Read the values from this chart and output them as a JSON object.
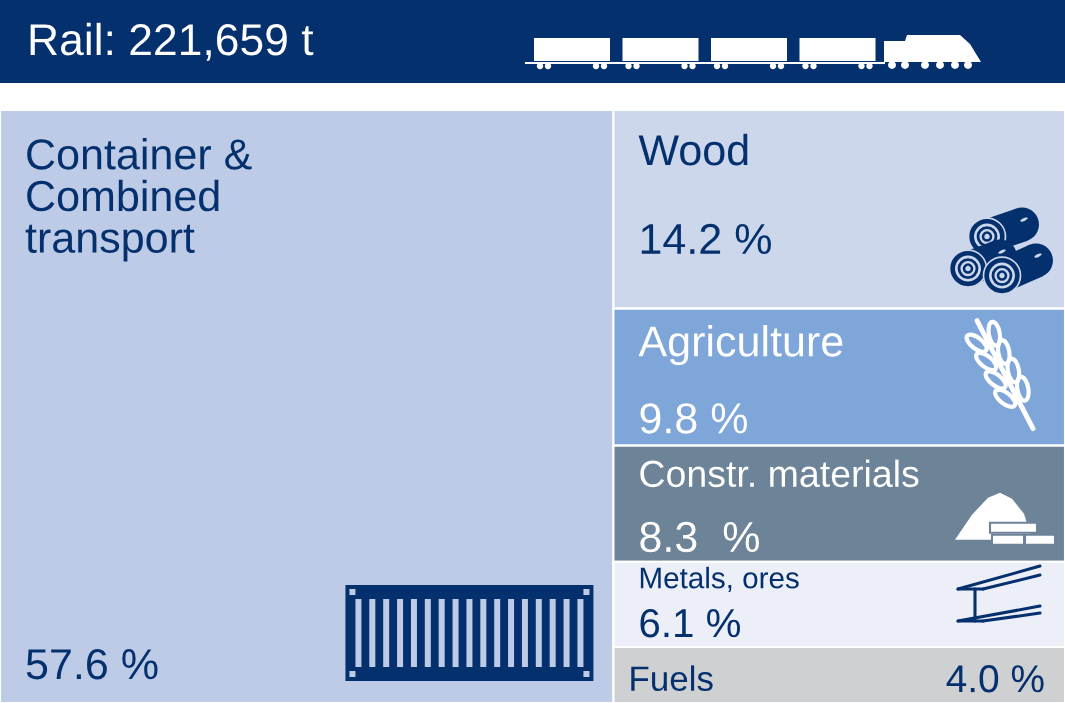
{
  "chart_data": {
    "type": "other",
    "title": "Rail: 221,659 t",
    "categories": [
      "Container &\nCombined\ntransport",
      "Wood",
      "Agriculture",
      "Constr. materials",
      "Metals, ores",
      "Fuels"
    ],
    "values": [
      57.6,
      14.2,
      9.8,
      8.3,
      6.1,
      4.0
    ],
    "value_labels": [
      "57.6 %",
      "14.2 %",
      "9.8 %",
      "8.3  %",
      "6.1 %",
      "4.0 %"
    ],
    "colors": [
      "#bdcbe7",
      "#cdd7ec",
      "#7fa6d9",
      "#6d8397",
      "#eceff7",
      "#cfd0d2"
    ]
  }
}
